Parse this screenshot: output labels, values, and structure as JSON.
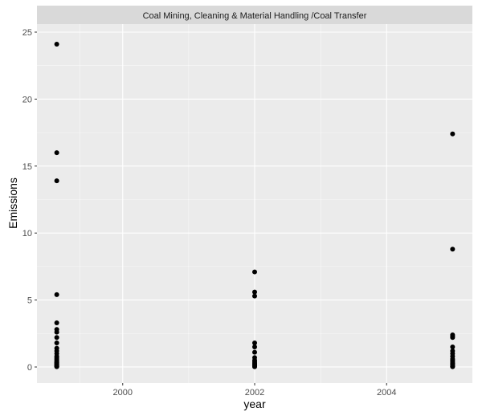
{
  "chart_data": {
    "type": "scatter",
    "facet_title": "Coal Mining, Cleaning & Material Handling /Coal Transfer",
    "xlabel": "year",
    "ylabel": "Emissions",
    "xlim": [
      1998.7,
      2005.3
    ],
    "ylim": [
      -1.2,
      25.6
    ],
    "x_ticks": [
      2000,
      2002,
      2004
    ],
    "x_tick_labels": [
      "2000",
      "2002",
      "2004"
    ],
    "y_ticks": [
      0,
      5,
      10,
      15,
      20,
      25
    ],
    "y_tick_labels": [
      "0",
      "5",
      "10",
      "15",
      "20",
      "25"
    ],
    "grid": true,
    "colors": {
      "panel_bg": "#ebebeb",
      "strip_bg": "#d9d9d9",
      "grid_major": "#ffffff",
      "point": "#000000"
    },
    "series": [
      {
        "x": [
          1999,
          1999,
          1999,
          1999,
          1999,
          1999,
          1999,
          1999,
          1999,
          1999,
          1999,
          1999,
          1999,
          1999,
          1999,
          1999,
          1999,
          1999,
          1999,
          1999,
          1999,
          1999,
          1999,
          1999,
          1999,
          1999,
          2002,
          2002,
          2002,
          2002,
          2002,
          2002,
          2002,
          2002,
          2002,
          2002,
          2002,
          2002,
          2002,
          2002,
          2002,
          2002,
          2005,
          2005,
          2005,
          2005,
          2005,
          2005,
          2005,
          2005,
          2005,
          2005,
          2005,
          2005,
          2005,
          2005,
          2005,
          2005,
          2005,
          2005
        ],
        "y": [
          24.1,
          16.0,
          13.9,
          5.4,
          3.3,
          2.8,
          2.6,
          2.2,
          1.8,
          1.4,
          1.2,
          1.0,
          0.8,
          0.7,
          0.6,
          0.5,
          0.4,
          0.35,
          0.3,
          0.25,
          0.2,
          0.15,
          0.1,
          0.07,
          0.05,
          0.02,
          7.1,
          5.6,
          5.3,
          1.8,
          1.5,
          1.1,
          0.7,
          0.5,
          0.4,
          0.3,
          0.25,
          0.2,
          0.15,
          0.1,
          0.05,
          0.02,
          17.4,
          8.8,
          2.4,
          2.3,
          2.2,
          1.5,
          1.2,
          1.0,
          0.8,
          0.6,
          0.5,
          0.4,
          0.3,
          0.25,
          0.2,
          0.1,
          0.05,
          0.02
        ]
      }
    ]
  }
}
